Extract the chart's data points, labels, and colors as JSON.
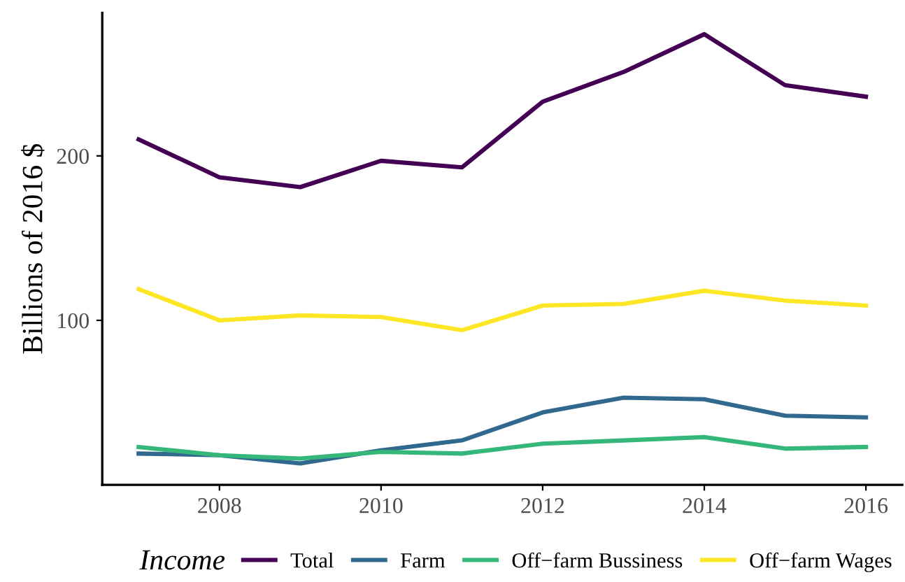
{
  "chart_data": {
    "type": "line",
    "ylabel": "Billions of 2016 $",
    "legend_title": "Income",
    "legend": "bottom",
    "grid": false,
    "x": [
      2007,
      2008,
      2009,
      2010,
      2011,
      2012,
      2013,
      2014,
      2015,
      2016
    ],
    "xlim": [
      2006.55,
      2016.45
    ],
    "xticks": [
      2008,
      2010,
      2012,
      2014,
      2016
    ],
    "ylim": [
      0,
      287
    ],
    "yticks": [
      100,
      200
    ],
    "series": [
      {
        "name": "Total",
        "color": "#440154",
        "values": [
          210,
          187,
          181,
          197,
          193,
          233,
          251,
          274,
          243,
          236
        ]
      },
      {
        "name": "Farm",
        "color": "#31688e",
        "values": [
          19,
          18,
          13,
          21,
          27,
          44,
          53,
          52,
          42,
          41
        ]
      },
      {
        "name": "Off−farm Bussiness",
        "color": "#35b779",
        "values": [
          23,
          18,
          16,
          20,
          19,
          25,
          27,
          29,
          22,
          23
        ]
      },
      {
        "name": "Off−farm Wages",
        "color": "#fde725",
        "values": [
          119,
          100,
          103,
          102,
          94,
          109,
          110,
          118,
          112,
          109
        ]
      }
    ]
  }
}
